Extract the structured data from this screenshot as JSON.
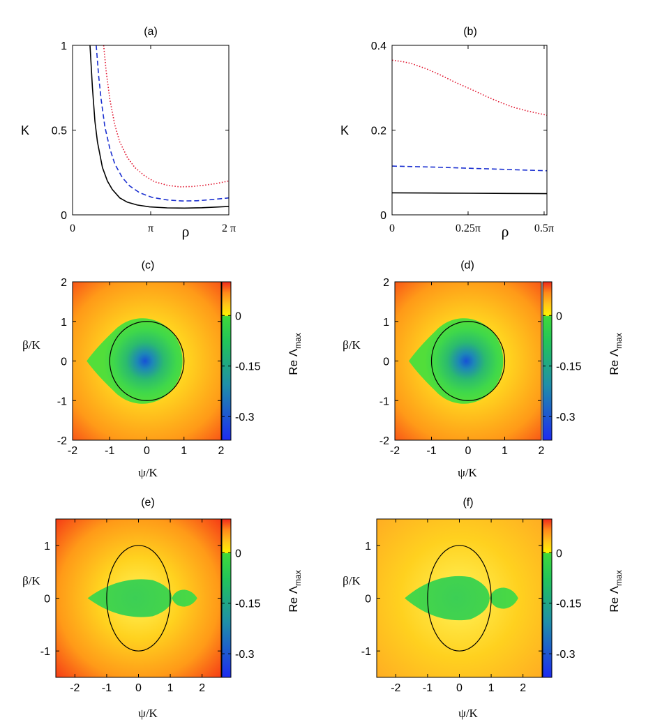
{
  "figure": {
    "colorbar": {
      "label_main": "Re Λ",
      "label_sub": "max",
      "ticks": [
        {
          "label": "0",
          "value": 0
        },
        {
          "label": "-0.15",
          "value": -0.15
        },
        {
          "label": "-0.3",
          "value": -0.3
        }
      ],
      "range": [
        -0.37,
        0.1
      ],
      "colors": [
        "#1e2cf0",
        "#1f8fa8",
        "#22c45a",
        "#3fd93a",
        "#fff200",
        "#ffc21a",
        "#ff8a1a",
        "#f02a1a"
      ]
    }
  },
  "chart_data": [
    {
      "panel": "(a)",
      "type": "line",
      "title": "(a)",
      "xlabel": "ρ",
      "ylabel": "K",
      "xlim": [
        0,
        6.2832
      ],
      "ylim": [
        0,
        1
      ],
      "x_ticks": [
        {
          "label": "0",
          "value": 0
        },
        {
          "label": "π",
          "value": 3.1416
        },
        {
          "label": "2 π",
          "value": 6.2832
        }
      ],
      "y_ticks": [
        {
          "label": "0",
          "value": 0
        },
        {
          "label": "0.5",
          "value": 0.5
        },
        {
          "label": "1",
          "value": 1
        }
      ],
      "series": [
        {
          "name": "solid",
          "color": "#000000",
          "dash": "solid",
          "x": [
            0.7,
            0.8,
            0.9,
            1.0,
            1.2,
            1.4,
            1.6,
            1.9,
            2.2,
            2.6,
            3.1,
            3.8,
            4.5,
            5.2,
            5.8,
            6.2832
          ],
          "y": [
            1.0,
            0.75,
            0.55,
            0.43,
            0.28,
            0.2,
            0.15,
            0.1,
            0.075,
            0.058,
            0.047,
            0.041,
            0.04,
            0.042,
            0.046,
            0.05
          ]
        },
        {
          "name": "dashed",
          "color": "#1a2fd0",
          "dash": "dashed",
          "x": [
            0.95,
            1.05,
            1.15,
            1.3,
            1.5,
            1.7,
            2.0,
            2.3,
            2.7,
            3.2,
            3.8,
            4.4,
            5.0,
            5.6,
            6.2832
          ],
          "y": [
            1.0,
            0.82,
            0.68,
            0.52,
            0.39,
            0.3,
            0.22,
            0.17,
            0.13,
            0.103,
            0.088,
            0.082,
            0.083,
            0.09,
            0.1
          ]
        },
        {
          "name": "dotted",
          "color": "#e0102a",
          "dash": "dotted",
          "x": [
            1.25,
            1.35,
            1.5,
            1.7,
            1.9,
            2.2,
            2.5,
            2.9,
            3.3,
            3.8,
            4.3,
            4.8,
            5.3,
            5.8,
            6.2832
          ],
          "y": [
            1.0,
            0.85,
            0.68,
            0.53,
            0.43,
            0.34,
            0.28,
            0.23,
            0.195,
            0.175,
            0.165,
            0.167,
            0.175,
            0.185,
            0.2
          ]
        }
      ]
    },
    {
      "panel": "(b)",
      "type": "line",
      "title": "(b)",
      "xlabel": "ρ",
      "ylabel": "K",
      "xlim": [
        0,
        1.6
      ],
      "ylim": [
        0,
        0.4
      ],
      "x_ticks": [
        {
          "label": "0",
          "value": 0
        },
        {
          "label": "0.25π",
          "value": 0.7854
        },
        {
          "label": "0.5π",
          "value": 1.5708
        }
      ],
      "y_ticks": [
        {
          "label": "0",
          "value": 0
        },
        {
          "label": "0.2",
          "value": 0.2
        },
        {
          "label": "0.4",
          "value": 0.4
        }
      ],
      "series": [
        {
          "name": "solid",
          "color": "#000000",
          "dash": "solid",
          "x": [
            0,
            0.4,
            0.8,
            1.2,
            1.6
          ],
          "y": [
            0.052,
            0.0515,
            0.051,
            0.0505,
            0.05
          ]
        },
        {
          "name": "dashed",
          "color": "#1a2fd0",
          "dash": "dashed",
          "x": [
            0,
            0.4,
            0.8,
            1.2,
            1.6
          ],
          "y": [
            0.115,
            0.113,
            0.11,
            0.107,
            0.104
          ]
        },
        {
          "name": "dotted",
          "color": "#e0102a",
          "dash": "dotted",
          "x": [
            0,
            0.1,
            0.2,
            0.35,
            0.5,
            0.65,
            0.8,
            0.95,
            1.1,
            1.25,
            1.4,
            1.6
          ],
          "y": [
            0.365,
            0.362,
            0.357,
            0.345,
            0.33,
            0.313,
            0.298,
            0.282,
            0.267,
            0.254,
            0.245,
            0.235
          ]
        }
      ]
    },
    {
      "panel": "(c)",
      "type": "heatmap",
      "title": "(c)",
      "xlabel": "ψ/K",
      "ylabel": "β/K",
      "xlim": [
        -2,
        2
      ],
      "ylim": [
        -2,
        2
      ],
      "x_ticks": [
        {
          "label": "-2",
          "value": -2
        },
        {
          "label": "-1",
          "value": -1
        },
        {
          "label": "0",
          "value": 0
        },
        {
          "label": "1",
          "value": 1
        },
        {
          "label": "2",
          "value": 2
        }
      ],
      "y_ticks": [
        {
          "label": "-2",
          "value": -2
        },
        {
          "label": "-1",
          "value": -1
        },
        {
          "label": "0",
          "value": 0
        },
        {
          "label": "1",
          "value": 1
        },
        {
          "label": "2",
          "value": 2
        }
      ],
      "stable_region": "roughly circular region centred near (-0.15, 0), radius about 1.1, with a pointed left tip at ψ/K ≈ -1.6",
      "overlay": {
        "type": "ellipse",
        "center": [
          0,
          0
        ],
        "rx": 1,
        "ry": 1,
        "color": "#000000"
      }
    },
    {
      "panel": "(d)",
      "type": "heatmap",
      "title": "(d)",
      "xlabel": "ψ/K",
      "ylabel": "β/K",
      "xlim": [
        -2,
        2
      ],
      "ylim": [
        -2,
        2
      ],
      "x_ticks": [
        {
          "label": "-2",
          "value": -2
        },
        {
          "label": "-1",
          "value": -1
        },
        {
          "label": "0",
          "value": 0
        },
        {
          "label": "1",
          "value": 1
        },
        {
          "label": "2",
          "value": 2
        }
      ],
      "y_ticks": [
        {
          "label": "-2",
          "value": -2
        },
        {
          "label": "-1",
          "value": -1
        },
        {
          "label": "0",
          "value": 0
        },
        {
          "label": "1",
          "value": 1
        },
        {
          "label": "2",
          "value": 2
        }
      ],
      "stable_region": "roughly circular region centred near (-0.15, 0), radius about 1.1, with a pointed left tip at ψ/K ≈ -1.6",
      "overlay": {
        "type": "ellipse",
        "center": [
          0,
          0
        ],
        "rx": 1,
        "ry": 1,
        "color": "#000000"
      }
    },
    {
      "panel": "(e)",
      "type": "heatmap",
      "title": "(e)",
      "xlabel": "ψ/K",
      "ylabel": "β/K",
      "xlim": [
        -2.6,
        2.6
      ],
      "ylim": [
        -1.5,
        1.5
      ],
      "x_ticks": [
        {
          "label": "-2",
          "value": -2
        },
        {
          "label": "-1",
          "value": -1
        },
        {
          "label": "0",
          "value": 0
        },
        {
          "label": "1",
          "value": 1
        },
        {
          "label": "2",
          "value": 2
        }
      ],
      "y_ticks": [
        {
          "label": "-1",
          "value": -1
        },
        {
          "label": "0",
          "value": 0
        },
        {
          "label": "1",
          "value": 1
        }
      ],
      "stable_region": "lens-shaped region from ψ/K ≈ -1.6 to 1.05 with half-height about 0.35, plus a smaller lens from 1.05 to 1.85",
      "overlay": {
        "type": "ellipse",
        "center": [
          0,
          0
        ],
        "rx": 1,
        "ry": 1,
        "color": "#000000"
      }
    },
    {
      "panel": "(f)",
      "type": "heatmap",
      "title": "(f)",
      "xlabel": "ψ/K",
      "ylabel": "β/K",
      "xlim": [
        -2.6,
        2.6
      ],
      "ylim": [
        -1.5,
        1.5
      ],
      "x_ticks": [
        {
          "label": "-2",
          "value": -2
        },
        {
          "label": "-1",
          "value": -1
        },
        {
          "label": "0",
          "value": 0
        },
        {
          "label": "1",
          "value": 1
        },
        {
          "label": "2",
          "value": 2
        }
      ],
      "y_ticks": [
        {
          "label": "-1",
          "value": -1
        },
        {
          "label": "0",
          "value": 0
        },
        {
          "label": "1",
          "value": 1
        }
      ],
      "stable_region": "lens-shaped region from ψ/K ≈ -1.7 to 0.95 with half-height about 0.4, plus a smaller lens from 0.95 to 1.85",
      "overlay": {
        "type": "ellipse",
        "center": [
          0,
          0
        ],
        "rx": 1,
        "ry": 1,
        "color": "#000000"
      }
    }
  ]
}
